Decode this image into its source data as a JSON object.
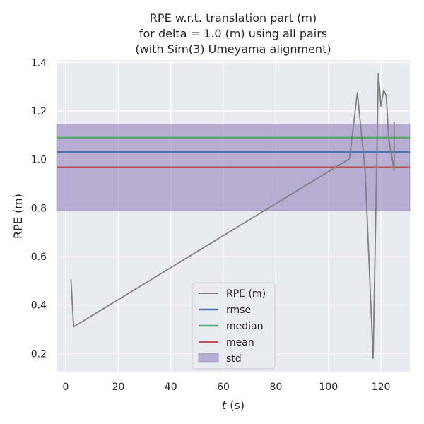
{
  "chart_data": {
    "type": "line",
    "title_lines": [
      "RPE w.r.t. translation part (m)",
      "for delta = 1.0 (m) using all pairs",
      "(with Sim(3) Umeyama alignment)"
    ],
    "xlabel_italic": "t",
    "xlabel_rest": " (s)",
    "ylabel": "RPE (m)",
    "xlim": [
      -3.5,
      131
    ],
    "ylim": [
      0.125,
      1.41
    ],
    "xticks": [
      0,
      20,
      40,
      60,
      80,
      100,
      120
    ],
    "yticks": [
      0.2,
      0.4,
      0.6,
      0.8,
      1.0,
      1.2,
      1.4
    ],
    "ytick_labels": [
      "0.2",
      "0.4",
      "0.6",
      "0.8",
      "1.0",
      "1.2",
      "1.4"
    ],
    "background": "#eaeaf2",
    "grid": true,
    "legend_position": "lower center",
    "series": [
      {
        "name": "RPE (m)",
        "color": "#808080",
        "x": [
          2,
          3,
          108,
          111,
          114,
          117,
          119,
          120,
          121,
          122,
          123,
          125,
          125
        ],
        "y": [
          0.505,
          0.31,
          1.003,
          1.275,
          0.95,
          0.18,
          1.355,
          1.22,
          1.285,
          1.265,
          1.08,
          0.955,
          1.155
        ]
      }
    ],
    "stats": {
      "rmse": {
        "label": "rmse",
        "value": 1.032,
        "color": "#4c72b0"
      },
      "median": {
        "label": "median",
        "value": 1.09,
        "color": "#55a868"
      },
      "mean": {
        "label": "mean",
        "value": 0.968,
        "color": "#c44e52"
      },
      "std": {
        "label": "std",
        "low": 0.79,
        "high": 1.146,
        "color": "#8172b2"
      }
    }
  }
}
